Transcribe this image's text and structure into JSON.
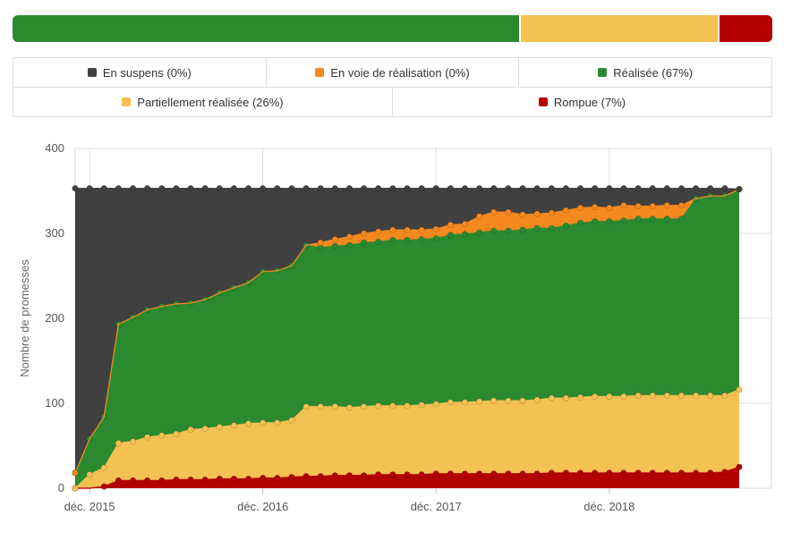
{
  "progress": [
    {
      "key": "realisee",
      "fraction": 0.67,
      "color": "#2b8a2f"
    },
    {
      "key": "partielle",
      "fraction": 0.26,
      "color": "#f4c153"
    },
    {
      "key": "rompue",
      "fraction": 0.07,
      "color": "#b30000"
    }
  ],
  "legend": {
    "rows": [
      [
        {
          "label": "En suspens (0%)",
          "color": "#404040"
        },
        {
          "label": "En voie de réalisation (0%)",
          "color": "#f5891f"
        },
        {
          "label": "Réalisée (67%)",
          "color": "#2b8a2f"
        }
      ],
      [
        {
          "label": "Partiellement réalisée (26%)",
          "color": "#f4c153"
        },
        {
          "label": "Rompue (7%)",
          "color": "#b30000"
        }
      ]
    ]
  },
  "chart_data": {
    "type": "area",
    "stacked": true,
    "xlabel": "",
    "ylabel": "Nombre de promesses",
    "ylim": [
      0,
      400
    ],
    "yticks": [
      "0",
      "100",
      "200",
      "300",
      "400"
    ],
    "xticks": [
      "déc. 2015",
      "déc. 2016",
      "déc. 2017",
      "déc. 2018"
    ],
    "grid": true,
    "total": 353,
    "x": [
      "2015-11",
      "2015-12",
      "2016-01",
      "2016-02",
      "2016-03",
      "2016-04",
      "2016-05",
      "2016-06",
      "2016-07",
      "2016-08",
      "2016-09",
      "2016-10",
      "2016-11",
      "2016-12",
      "2017-01",
      "2017-02",
      "2017-03",
      "2017-04",
      "2017-05",
      "2017-06",
      "2017-07",
      "2017-08",
      "2017-09",
      "2017-10",
      "2017-11",
      "2017-12",
      "2018-01",
      "2018-02",
      "2018-03",
      "2018-04",
      "2018-05",
      "2018-06",
      "2018-07",
      "2018-08",
      "2018-09",
      "2018-10",
      "2018-11",
      "2018-12",
      "2019-01",
      "2019-02",
      "2019-03",
      "2019-04",
      "2019-05",
      "2019-06",
      "2019-07",
      "2019-08",
      "2019-09"
    ],
    "series": [
      {
        "name": "Rompue",
        "color": "#b30000",
        "values": [
          0,
          0,
          2,
          9,
          9,
          9,
          9,
          10,
          10,
          10,
          11,
          11,
          11,
          12,
          12,
          13,
          14,
          14,
          15,
          15,
          15,
          16,
          16,
          16,
          16,
          17,
          17,
          17,
          17,
          17,
          17,
          17,
          17,
          18,
          18,
          18,
          18,
          18,
          18,
          18,
          18,
          18,
          18,
          18,
          18,
          19,
          25
        ]
      },
      {
        "name": "Partiellement réalisée",
        "color": "#f4c153",
        "values": [
          0,
          16,
          22,
          44,
          46,
          51,
          53,
          54,
          59,
          60,
          61,
          63,
          65,
          65,
          65,
          67,
          82,
          82,
          81,
          80,
          81,
          81,
          81,
          81,
          82,
          82,
          84,
          84,
          85,
          86,
          86,
          86,
          87,
          88,
          88,
          89,
          90,
          90,
          90,
          91,
          91,
          91,
          91,
          91,
          91,
          90,
          91
        ]
      },
      {
        "name": "Réalisée",
        "color": "#2b8a2f",
        "values": [
          18,
          42,
          60,
          140,
          146,
          150,
          152,
          153,
          149,
          152,
          158,
          162,
          166,
          178,
          179,
          182,
          190,
          187,
          189,
          191,
          193,
          193,
          195,
          195,
          195,
          195,
          197,
          198,
          199,
          200,
          200,
          201,
          202,
          200,
          203,
          205,
          206,
          206,
          207,
          208,
          208,
          208,
          208,
          232,
          235,
          235,
          236
        ]
      },
      {
        "name": "En voie de réalisation",
        "color": "#f5891f",
        "values": [
          0,
          0,
          0,
          0,
          0,
          0,
          0,
          0,
          0,
          0,
          0,
          0,
          0,
          0,
          0,
          0,
          0,
          6,
          8,
          10,
          11,
          12,
          12,
          12,
          11,
          11,
          12,
          12,
          19,
          22,
          22,
          18,
          17,
          18,
          18,
          18,
          17,
          16,
          18,
          15,
          15,
          16,
          16,
          0,
          0,
          0,
          0
        ]
      },
      {
        "name": "En suspens",
        "color": "#404040",
        "values": [
          335,
          295,
          269,
          160,
          152,
          143,
          139,
          136,
          135,
          131,
          123,
          117,
          111,
          98,
          97,
          91,
          67,
          64,
          60,
          57,
          53,
          51,
          49,
          49,
          49,
          48,
          43,
          42,
          33,
          28,
          28,
          31,
          30,
          29,
          26,
          23,
          22,
          23,
          20,
          21,
          21,
          20,
          20,
          12,
          9,
          9,
          0
        ]
      }
    ]
  }
}
